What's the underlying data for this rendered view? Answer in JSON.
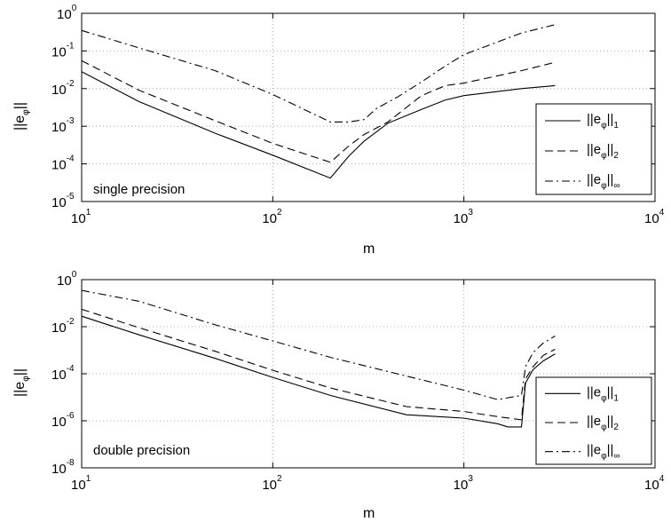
{
  "chart_data": [
    {
      "type": "line",
      "xscale": "log",
      "yscale": "log",
      "xlim": [
        10,
        10000
      ],
      "ylim": [
        1e-05,
        1
      ],
      "grid": true,
      "xlabel": "m",
      "ylabel_base": "||e",
      "ylabel_sub": "φ",
      "ylabel_end": "||",
      "annotation": "single precision",
      "x_ticks": [
        {
          "base": "10",
          "exp": "1"
        },
        {
          "base": "10",
          "exp": "2"
        },
        {
          "base": "10",
          "exp": "3"
        },
        {
          "base": "10",
          "exp": "4"
        }
      ],
      "y_ticks": [
        {
          "base": "10",
          "exp": "-5"
        },
        {
          "base": "10",
          "exp": "-4"
        },
        {
          "base": "10",
          "exp": "-3"
        },
        {
          "base": "10",
          "exp": "-2"
        },
        {
          "base": "10",
          "exp": "-1"
        },
        {
          "base": "10",
          "exp": "0"
        }
      ],
      "legend_position": "right",
      "series": [
        {
          "name_base": "||e",
          "name_sub": "φ",
          "name_norm": "1",
          "style": "solid",
          "x": [
            10,
            20,
            50,
            100,
            200,
            250,
            300,
            400,
            600,
            800,
            1000,
            2000,
            3000
          ],
          "y": [
            0.028,
            0.0045,
            0.00065,
            0.00017,
            4.2e-05,
            0.00016,
            0.0004,
            0.0012,
            0.0028,
            0.005,
            0.0065,
            0.01,
            0.012
          ]
        },
        {
          "name_base": "||e",
          "name_sub": "φ",
          "name_norm": "2",
          "style": "dashed",
          "x": [
            10,
            20,
            50,
            100,
            200,
            250,
            300,
            400,
            600,
            800,
            1000,
            2000,
            3000
          ],
          "y": [
            0.055,
            0.009,
            0.0014,
            0.00035,
            0.00011,
            0.0003,
            0.0006,
            0.0013,
            0.0065,
            0.012,
            0.014,
            0.03,
            0.05
          ]
        },
        {
          "name_base": "||e",
          "name_sub": "φ",
          "name_norm": "∞",
          "style": "dashdot",
          "x": [
            10,
            20,
            50,
            100,
            200,
            250,
            300,
            350,
            450,
            600,
            800,
            1000,
            2000,
            3000
          ],
          "y": [
            0.35,
            0.12,
            0.03,
            0.007,
            0.0013,
            0.0013,
            0.0015,
            0.003,
            0.006,
            0.015,
            0.04,
            0.08,
            0.3,
            0.5
          ]
        }
      ]
    },
    {
      "type": "line",
      "xscale": "log",
      "yscale": "log",
      "xlim": [
        10,
        10000
      ],
      "ylim": [
        1e-08,
        1
      ],
      "grid": true,
      "xlabel": "m",
      "ylabel_base": "||e",
      "ylabel_sub": "φ",
      "ylabel_end": "||",
      "annotation": "double precision",
      "x_ticks": [
        {
          "base": "10",
          "exp": "1"
        },
        {
          "base": "10",
          "exp": "2"
        },
        {
          "base": "10",
          "exp": "3"
        },
        {
          "base": "10",
          "exp": "4"
        }
      ],
      "y_ticks": [
        {
          "base": "10",
          "exp": "-8"
        },
        {
          "base": "10",
          "exp": "-6"
        },
        {
          "base": "10",
          "exp": "-4"
        },
        {
          "base": "10",
          "exp": "-2"
        },
        {
          "base": "10",
          "exp": "0"
        }
      ],
      "legend_position": "lower right",
      "series": [
        {
          "name_base": "||e",
          "name_sub": "φ",
          "name_norm": "1",
          "style": "solid",
          "x": [
            10,
            20,
            50,
            100,
            200,
            500,
            1000,
            1500,
            1700,
            2000,
            2100,
            2300,
            2600,
            3000
          ],
          "y": [
            0.028,
            0.0045,
            0.00045,
            7e-05,
            1.2e-05,
            1.8e-06,
            1.3e-06,
            7.5e-07,
            5.5e-07,
            5.5e-07,
            4e-05,
            0.00015,
            0.00035,
            0.0007
          ]
        },
        {
          "name_base": "||e",
          "name_sub": "φ",
          "name_norm": "2",
          "style": "dashed",
          "x": [
            10,
            20,
            50,
            100,
            200,
            500,
            1000,
            1500,
            2000,
            2100,
            2300,
            2600,
            3000
          ],
          "y": [
            0.055,
            0.009,
            0.0009,
            0.00014,
            2.5e-05,
            4e-06,
            2.5e-06,
            1.5e-06,
            1.1e-06,
            6e-05,
            0.0002,
            0.0006,
            0.0011
          ]
        },
        {
          "name_base": "||e",
          "name_sub": "φ",
          "name_norm": "∞",
          "style": "dashdot",
          "x": [
            10,
            20,
            50,
            100,
            200,
            500,
            1000,
            1500,
            2000,
            2100,
            2300,
            2600,
            3000
          ],
          "y": [
            0.35,
            0.12,
            0.012,
            0.0025,
            0.0005,
            8e-05,
            2e-05,
            8e-06,
            1.2e-05,
            0.0002,
            0.0008,
            0.002,
            0.004
          ]
        }
      ]
    }
  ]
}
